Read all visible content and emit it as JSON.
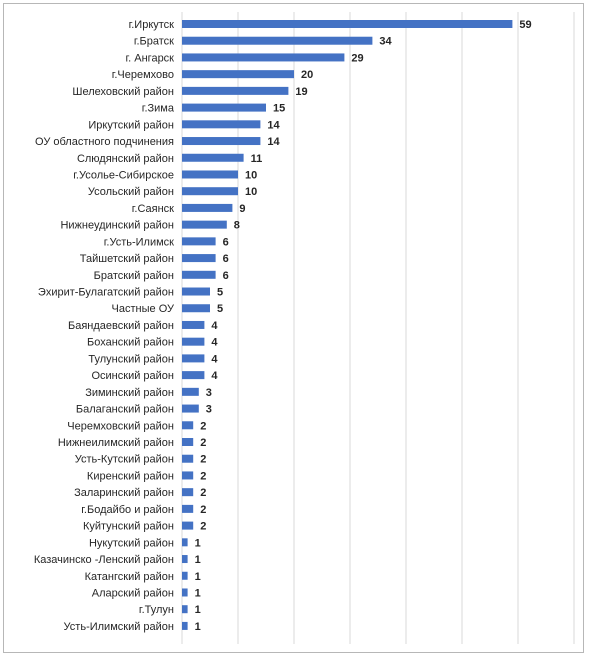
{
  "chart_data": {
    "type": "bar",
    "orientation": "horizontal",
    "categories": [
      "г.Иркутск",
      "г.Братск",
      "г. Ангарск",
      "г.Черемхово",
      "Шелеховский район",
      "г.Зима",
      "Иркутский район",
      "ОУ областного подчинения",
      "Слюдянский район",
      "г.Усолье-Сибирское",
      "Усольский район",
      "г.Саянск",
      "Нижнеудинский район",
      "г.Усть-Илимск",
      "Тайшетский район",
      "Братский район",
      "Эхирит-Булагатский район",
      "Частные ОУ",
      "Баяндаевский район",
      "Боханский район",
      "Тулунский район",
      "Осинский район",
      "Зиминский район",
      "Балаганский район",
      "Черемховский район",
      "Нижнеилимский район",
      "Усть-Кутский район",
      "Киренский район",
      "Заларинский район",
      "г.Бодайбо и район",
      "Куйтунский район",
      "Нукутский район",
      "Казачинско -Ленский район",
      "Катангский район",
      "Аларский район",
      "г.Тулун",
      "Усть-Илимский район"
    ],
    "values": [
      59,
      34,
      29,
      20,
      19,
      15,
      14,
      14,
      11,
      10,
      10,
      9,
      8,
      6,
      6,
      6,
      5,
      5,
      4,
      4,
      4,
      4,
      3,
      3,
      2,
      2,
      2,
      2,
      2,
      2,
      2,
      1,
      1,
      1,
      1,
      1,
      1
    ],
    "data_labels": true,
    "grid": true,
    "xlim": [
      0,
      70
    ],
    "bar_color": "#4472c4",
    "grid_color": "#d9d9d9",
    "text_color": "#262626"
  }
}
